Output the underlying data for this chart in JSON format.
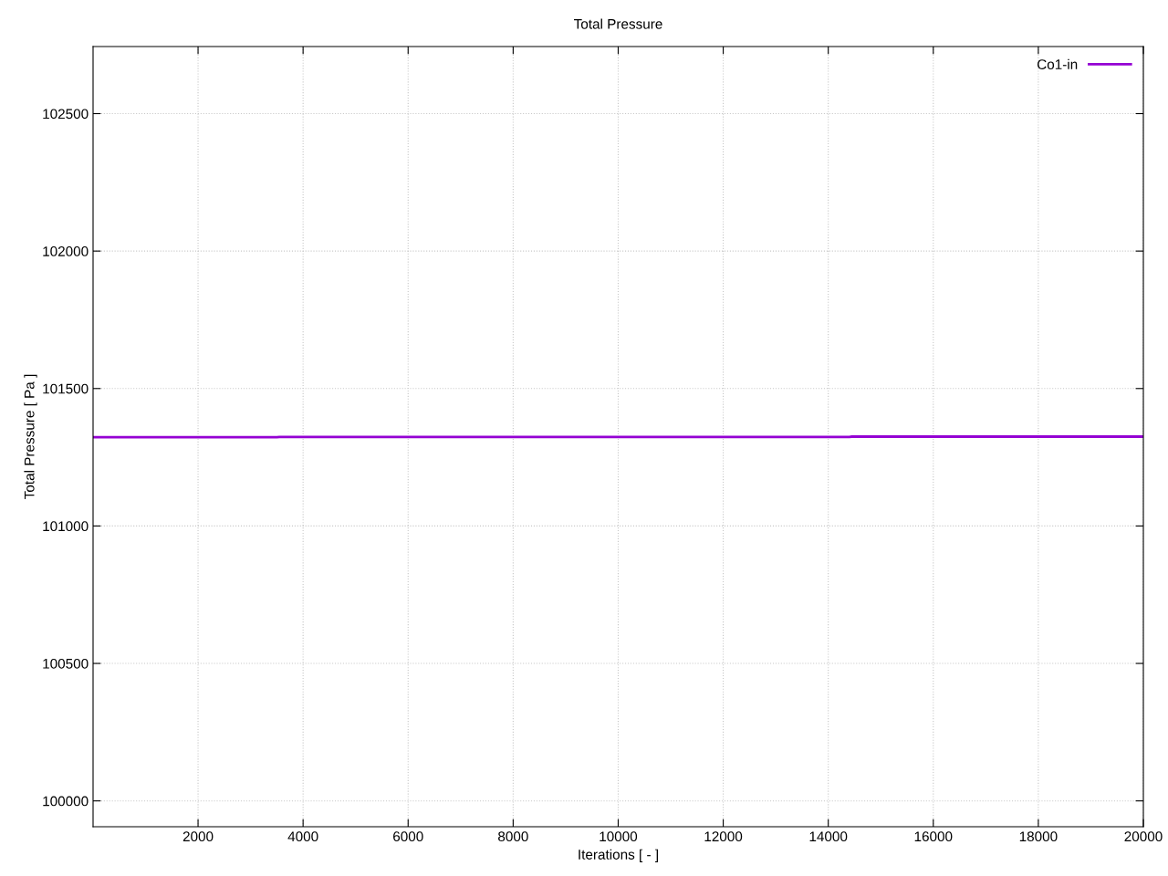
{
  "chart_data": {
    "type": "line",
    "title": "Total Pressure",
    "xlabel": "Iterations [ - ]",
    "ylabel": "Total Pressure [ Pa ]",
    "x": [
      1,
      3500,
      3550,
      14400,
      14450,
      20000
    ],
    "series": [
      {
        "name": "Co1-in",
        "color": "#9400d3",
        "values": [
          101323,
          101323,
          101324,
          101324,
          101325,
          101325
        ]
      }
    ],
    "xlim": [
      1,
      20000
    ],
    "xticks": [
      2000,
      4000,
      6000,
      8000,
      10000,
      12000,
      14000,
      16000,
      18000,
      20000
    ],
    "ylim": [
      99906,
      102744
    ],
    "yticks": [
      100000,
      100500,
      101000,
      101500,
      102000,
      102500
    ],
    "grid": true,
    "legend": "top right",
    "line_style": "solid",
    "marker": "none"
  }
}
